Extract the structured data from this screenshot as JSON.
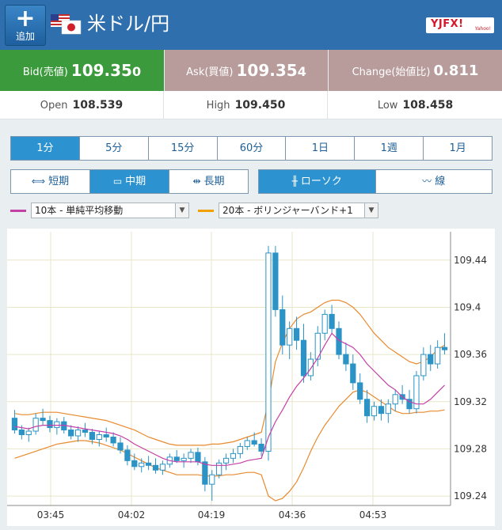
{
  "header": {
    "add_label": "追加",
    "pair": "米ドル/円",
    "brand": "YJFX!",
    "brand_sub": "Yahoo!"
  },
  "quotes": {
    "bid_label": "Bid(売値)",
    "bid_main": "109.35",
    "bid_last": "0",
    "ask_label": "Ask(買値)",
    "ask_main": "109.35",
    "ask_last": "4",
    "change_label": "Change(始値比)",
    "change_value": "0.811"
  },
  "ohl": {
    "open_label": "Open",
    "open_main": "108.53",
    "open_last": "9",
    "high_label": "High",
    "high_value": "109.450",
    "low_label": "Low",
    "low_value": "108.458"
  },
  "periods": [
    "1分",
    "5分",
    "15分",
    "60分",
    "1日",
    "1週",
    "1月"
  ],
  "active_period": 0,
  "terms": [
    "短期",
    "中期",
    "長期"
  ],
  "active_term": 1,
  "types": [
    "ローソク",
    "線"
  ],
  "active_type": 0,
  "indicators": [
    {
      "label": "10本 - 単純平均移動",
      "color": "#c53fa7"
    },
    {
      "label": "20本 - ボリンジャーバンド+1",
      "color": "#f0a000"
    }
  ],
  "colors": {
    "candle": "#2b93c6",
    "ma": "#c53fa7",
    "band": "#e98a2e",
    "grid": "#e8e6c8"
  },
  "chart_data": {
    "type": "candlestick",
    "x_ticks": [
      "03:45",
      "04:02",
      "04:19",
      "04:36",
      "04:53"
    ],
    "y_ticks": [
      "109.44",
      "109.4",
      "109.36",
      "109.32",
      "109.28",
      "109.24"
    ],
    "ylim": [
      109.232,
      109.464
    ],
    "grid": true,
    "candles": [
      [
        109.306,
        109.313,
        109.293,
        109.296
      ],
      [
        109.296,
        109.3,
        109.288,
        109.292
      ],
      [
        109.292,
        109.298,
        109.286,
        109.295
      ],
      [
        109.295,
        109.31,
        109.292,
        109.306
      ],
      [
        109.306,
        109.314,
        109.3,
        109.304
      ],
      [
        109.304,
        109.308,
        109.294,
        109.298
      ],
      [
        109.298,
        109.306,
        109.292,
        109.303
      ],
      [
        109.303,
        109.307,
        109.293,
        109.296
      ],
      [
        109.296,
        109.3,
        109.288,
        109.291
      ],
      [
        109.291,
        109.299,
        109.286,
        109.296
      ],
      [
        109.296,
        109.302,
        109.29,
        109.294
      ],
      [
        109.294,
        109.297,
        109.284,
        109.288
      ],
      [
        109.288,
        109.295,
        109.282,
        109.292
      ],
      [
        109.292,
        109.298,
        109.286,
        109.29
      ],
      [
        109.29,
        109.294,
        109.282,
        109.285
      ],
      [
        109.285,
        109.29,
        109.276,
        109.279
      ],
      [
        109.279,
        109.283,
        109.266,
        109.27
      ],
      [
        109.27,
        109.276,
        109.262,
        109.265
      ],
      [
        109.265,
        109.272,
        109.26,
        109.268
      ],
      [
        109.268,
        109.274,
        109.262,
        109.266
      ],
      [
        109.266,
        109.272,
        109.259,
        109.262
      ],
      [
        109.262,
        109.27,
        109.258,
        109.267
      ],
      [
        109.267,
        109.276,
        109.264,
        109.273
      ],
      [
        109.273,
        109.279,
        109.268,
        109.27
      ],
      [
        109.27,
        109.276,
        109.264,
        109.272
      ],
      [
        109.272,
        109.28,
        109.268,
        109.277
      ],
      [
        109.277,
        109.281,
        109.266,
        109.269
      ],
      [
        109.269,
        109.273,
        109.244,
        109.25
      ],
      [
        109.25,
        109.262,
        109.236,
        109.258
      ],
      [
        109.258,
        109.271,
        109.255,
        109.268
      ],
      [
        109.268,
        109.276,
        109.262,
        109.272
      ],
      [
        109.272,
        109.28,
        109.268,
        109.276
      ],
      [
        109.276,
        109.285,
        109.272,
        109.282
      ],
      [
        109.282,
        109.29,
        109.279,
        109.287
      ],
      [
        109.287,
        109.294,
        109.282,
        109.284
      ],
      [
        109.284,
        109.289,
        109.274,
        109.278
      ],
      [
        109.278,
        109.452,
        109.27,
        109.446
      ],
      [
        109.446,
        109.452,
        109.392,
        109.398
      ],
      [
        109.398,
        109.41,
        109.36,
        109.368
      ],
      [
        109.368,
        109.388,
        109.356,
        109.382
      ],
      [
        109.382,
        109.392,
        109.364,
        109.372
      ],
      [
        109.372,
        109.386,
        109.336,
        109.342
      ],
      [
        109.342,
        109.362,
        109.338,
        109.356
      ],
      [
        109.356,
        109.384,
        109.35,
        109.378
      ],
      [
        109.378,
        109.398,
        109.372,
        109.394
      ],
      [
        109.394,
        109.402,
        109.378,
        109.382
      ],
      [
        109.382,
        109.388,
        109.356,
        109.36
      ],
      [
        109.36,
        109.37,
        109.346,
        109.352
      ],
      [
        109.352,
        109.36,
        109.33,
        109.336
      ],
      [
        109.336,
        109.344,
        109.318,
        109.322
      ],
      [
        109.322,
        109.33,
        109.302,
        109.308
      ],
      [
        109.308,
        109.32,
        109.304,
        109.316
      ],
      [
        109.316,
        109.322,
        109.304,
        109.31
      ],
      [
        109.31,
        109.322,
        109.302,
        109.318
      ],
      [
        109.318,
        109.33,
        109.312,
        109.326
      ],
      [
        109.326,
        109.334,
        109.318,
        109.322
      ],
      [
        109.322,
        109.33,
        109.31,
        109.314
      ],
      [
        109.314,
        109.346,
        109.31,
        109.342
      ],
      [
        109.342,
        109.366,
        109.338,
        109.36
      ],
      [
        109.36,
        109.368,
        109.346,
        109.352
      ],
      [
        109.352,
        109.372,
        109.348,
        109.366
      ],
      [
        109.366,
        109.378,
        109.36,
        109.364
      ]
    ],
    "ma": [
      109.299,
      109.298,
      109.297,
      109.299,
      109.3,
      109.3,
      109.3,
      109.3,
      109.299,
      109.298,
      109.297,
      109.296,
      109.295,
      109.294,
      109.293,
      109.291,
      109.288,
      109.284,
      109.281,
      109.278,
      109.275,
      109.272,
      109.27,
      109.269,
      109.269,
      109.269,
      109.269,
      109.267,
      109.266,
      109.266,
      109.266,
      109.267,
      109.268,
      109.27,
      109.271,
      109.272,
      109.29,
      109.303,
      109.313,
      109.324,
      109.333,
      109.34,
      109.348,
      109.357,
      109.368,
      109.378,
      109.372,
      109.369,
      109.366,
      109.36,
      109.352,
      109.346,
      109.34,
      109.334,
      109.33,
      109.324,
      109.32,
      109.318,
      109.318,
      109.322,
      109.328,
      109.334
    ],
    "band_upper": [
      109.31,
      109.309,
      109.309,
      109.31,
      109.311,
      109.311,
      109.311,
      109.31,
      109.309,
      109.308,
      109.307,
      109.306,
      109.305,
      109.304,
      109.302,
      109.3,
      109.298,
      109.296,
      109.293,
      109.29,
      109.288,
      109.286,
      109.284,
      109.283,
      109.283,
      109.283,
      109.283,
      109.283,
      109.284,
      109.284,
      109.285,
      109.286,
      109.288,
      109.29,
      109.292,
      109.294,
      109.32,
      109.354,
      109.37,
      109.382,
      109.39,
      109.394,
      109.396,
      109.4,
      109.404,
      109.406,
      109.406,
      109.404,
      109.4,
      109.394,
      109.386,
      109.378,
      109.372,
      109.366,
      109.362,
      109.358,
      109.354,
      109.352,
      109.354,
      109.358,
      109.364,
      109.368
    ],
    "band_lower": [
      109.272,
      109.274,
      109.276,
      109.278,
      109.28,
      109.282,
      109.284,
      109.285,
      109.286,
      109.287,
      109.287,
      109.286,
      109.285,
      109.283,
      109.281,
      109.279,
      109.276,
      109.273,
      109.27,
      109.267,
      109.264,
      109.262,
      109.26,
      109.258,
      109.258,
      109.258,
      109.258,
      109.257,
      109.257,
      109.257,
      109.258,
      109.258,
      109.259,
      109.26,
      109.26,
      109.258,
      109.24,
      109.236,
      109.238,
      109.244,
      109.252,
      109.264,
      109.278,
      109.29,
      109.3,
      109.308,
      109.316,
      109.322,
      109.328,
      109.33,
      109.328,
      109.324,
      109.32,
      109.316,
      109.312,
      109.31,
      109.31,
      109.311,
      109.311,
      109.312,
      109.312,
      109.313
    ]
  }
}
